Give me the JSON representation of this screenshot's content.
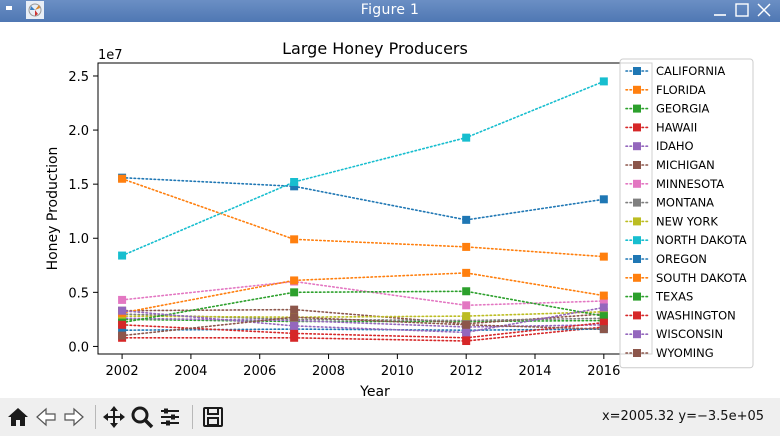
{
  "window": {
    "title": "Figure 1",
    "icons": [
      "app-menu-icon",
      "figure-logo-icon",
      "minimize-icon",
      "maximize-icon",
      "close-icon"
    ]
  },
  "toolbar": {
    "buttons": [
      "home-icon",
      "back-icon",
      "forward-icon",
      "pan-icon",
      "zoom-icon",
      "subplots-icon",
      "save-icon"
    ],
    "coordinates": "x=2005.32 y=−3.5e+05"
  },
  "chart_data": {
    "type": "line",
    "title": "Large Honey Producers",
    "xlabel": "Year",
    "ylabel": "Honey Production",
    "y_offset_label": "1e7",
    "xlim": [
      2001.3,
      2017.4
    ],
    "ylim": [
      -0.07,
      2.62
    ],
    "y_scale_factor": 10000000,
    "x_ticks": [
      2002,
      2004,
      2006,
      2008,
      2010,
      2012,
      2014,
      2016
    ],
    "x_tick_labels": [
      "2002",
      "2004",
      "2006",
      "2008",
      "2010",
      "2012",
      "2014",
      "2016"
    ],
    "y_ticks": [
      0.0,
      0.5,
      1.0,
      1.5,
      2.0,
      2.5
    ],
    "y_tick_labels": [
      "0.0",
      "0.5",
      "1.0",
      "1.5",
      "2.0",
      "2.5"
    ],
    "grid": false,
    "legend_position": "upper-right",
    "line_style": "dotted",
    "marker": "square",
    "x": [
      2002,
      2007,
      2012,
      2016
    ],
    "series": [
      {
        "name": "CALIFORNIA",
        "color": "#1f77b4",
        "values": [
          1.56,
          1.48,
          1.17,
          1.36
        ]
      },
      {
        "name": "FLORIDA",
        "color": "#ff7f0e",
        "values": [
          1.55,
          0.99,
          0.92,
          0.83
        ]
      },
      {
        "name": "GEORGIA",
        "color": "#2ca02c",
        "values": [
          0.25,
          0.23,
          0.23,
          0.24
        ]
      },
      {
        "name": "HAWAII",
        "color": "#d62728",
        "values": [
          0.08,
          0.08,
          0.05,
          0.18
        ]
      },
      {
        "name": "IDAHO",
        "color": "#9467bd",
        "values": [
          0.26,
          0.24,
          0.18,
          0.2
        ]
      },
      {
        "name": "MICHIGAN",
        "color": "#8c564b",
        "values": [
          0.33,
          0.34,
          0.21,
          0.3
        ]
      },
      {
        "name": "MINNESOTA",
        "color": "#e377c2",
        "values": [
          0.43,
          0.6,
          0.38,
          0.42
        ]
      },
      {
        "name": "MONTANA",
        "color": "#7f7f7f",
        "values": [
          0.3,
          0.25,
          0.24,
          0.26
        ]
      },
      {
        "name": "NEW YORK",
        "color": "#bcbd22",
        "values": [
          0.28,
          0.27,
          0.28,
          0.32
        ]
      },
      {
        "name": "NORTH DAKOTA",
        "color": "#17becf",
        "values": [
          0.84,
          1.52,
          1.93,
          2.45
        ]
      },
      {
        "name": "OREGON",
        "color": "#1f77b4",
        "values": [
          0.15,
          0.16,
          0.15,
          0.16
        ]
      },
      {
        "name": "SOUTH DAKOTA",
        "color": "#ff7f0e",
        "values": [
          0.31,
          0.61,
          0.68,
          0.47
        ]
      },
      {
        "name": "TEXAS",
        "color": "#2ca02c",
        "values": [
          0.22,
          0.5,
          0.51,
          0.28
        ]
      },
      {
        "name": "WASHINGTON",
        "color": "#d62728",
        "values": [
          0.2,
          0.12,
          0.08,
          0.22
        ]
      },
      {
        "name": "WISCONSIN",
        "color": "#9467bd",
        "values": [
          0.33,
          0.19,
          0.13,
          0.36
        ]
      },
      {
        "name": "WYOMING",
        "color": "#8c564b",
        "values": [
          0.1,
          0.27,
          0.2,
          0.16
        ]
      }
    ]
  }
}
